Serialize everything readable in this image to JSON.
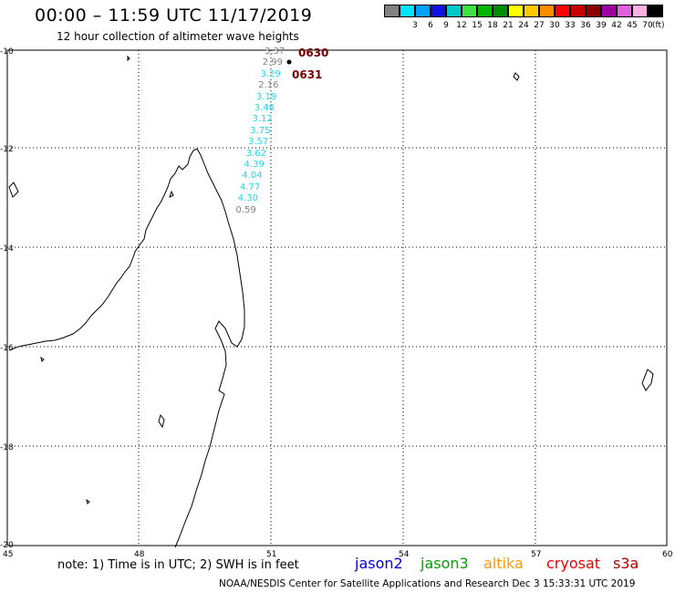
{
  "header": {
    "title": "00:00 – 11:59 UTC 11/17/2019",
    "subtitle": "12 hour collection of altimeter wave heights"
  },
  "legend": {
    "swatches": [
      {
        "color": "#808080",
        "label": ""
      },
      {
        "color": "#00e5ff",
        "label": "3"
      },
      {
        "color": "#00a0ff",
        "label": "6"
      },
      {
        "color": "#1010e0",
        "label": "9"
      },
      {
        "color": "#00c8c8",
        "label": "12"
      },
      {
        "color": "#40e040",
        "label": "15"
      },
      {
        "color": "#00b400",
        "label": "18"
      },
      {
        "color": "#008c00",
        "label": "21"
      },
      {
        "color": "#ffff00",
        "label": "24"
      },
      {
        "color": "#ffc800",
        "label": "27"
      },
      {
        "color": "#ff8c00",
        "label": "30"
      },
      {
        "color": "#ff0000",
        "label": "33"
      },
      {
        "color": "#c80000",
        "label": "36"
      },
      {
        "color": "#8c0000",
        "label": "39"
      },
      {
        "color": "#a000a0",
        "label": "42"
      },
      {
        "color": "#e060e0",
        "label": "45"
      },
      {
        "color": "#ffb0e0",
        "label": "70"
      },
      {
        "color": "#000000",
        "label": ""
      }
    ],
    "unit": "(ft)"
  },
  "axes": {
    "lat_labels": [
      "-10",
      "-12",
      "-14",
      "-16",
      "-18",
      "-20"
    ],
    "lon_labels": [
      "45",
      "48",
      "51",
      "54",
      "57",
      "60"
    ]
  },
  "track": {
    "times": [
      "0630",
      "0631"
    ],
    "measurements": [
      {
        "value": "3.37",
        "color": "#808080"
      },
      {
        "value": "2.99",
        "color": "#808080"
      },
      {
        "value": "3.29",
        "color": "#20d8e8"
      },
      {
        "value": "2.16",
        "color": "#808080"
      },
      {
        "value": "3.19",
        "color": "#20d8e8"
      },
      {
        "value": "3.46",
        "color": "#20d8e8"
      },
      {
        "value": "3.12",
        "color": "#20d8e8"
      },
      {
        "value": "3.75",
        "color": "#20d8e8"
      },
      {
        "value": "3.57",
        "color": "#20d8e8"
      },
      {
        "value": "3.62",
        "color": "#20d8e8"
      },
      {
        "value": "4.39",
        "color": "#20d8e8"
      },
      {
        "value": "4.04",
        "color": "#20d8e8"
      },
      {
        "value": "4.77",
        "color": "#20d8e8"
      },
      {
        "value": "4.30",
        "color": "#20d8e8"
      },
      {
        "value": "0.59",
        "color": "#808080"
      }
    ]
  },
  "note": "note: 1) Time is in UTC; 2) SWH is in feet",
  "satellites": [
    {
      "name": "jason2",
      "color": "#0000dd"
    },
    {
      "name": "jason3",
      "color": "#00a000"
    },
    {
      "name": "altika",
      "color": "#ff9900"
    },
    {
      "name": "cryosat",
      "color": "#ee0000"
    },
    {
      "name": "s3a",
      "color": "#b00000"
    }
  ],
  "footer": "NOAA/NESDIS Center for Satellite Applications and Research    Dec  3 15:33:31 UTC 2019"
}
